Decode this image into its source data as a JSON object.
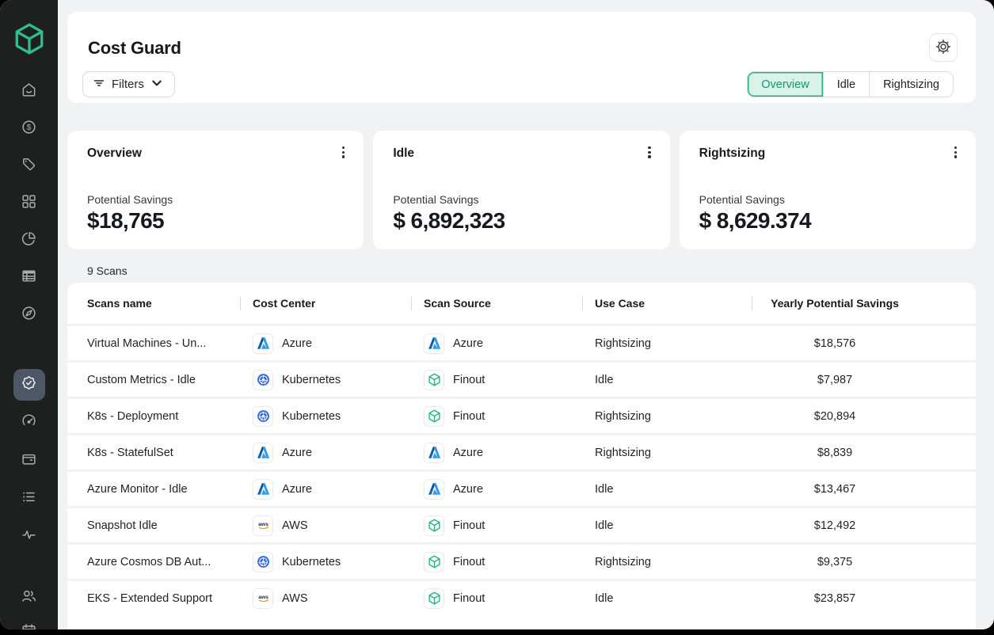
{
  "colors": {
    "sidebar_bg": "#1d201f",
    "sidebar_active_bg": "#4d5766",
    "main_bg": "#f1f2f4",
    "accent_green": "#2fbe8d",
    "tab_active_bg": "#d9f3e8",
    "tab_active_border": "#2fae82",
    "tab_active_text": "#0f9872"
  },
  "sidebar": {
    "logo_icon": "finout-logo",
    "sections": [
      {
        "name": "top",
        "items": [
          {
            "icon": "home-icon"
          },
          {
            "icon": "dollar-circle-icon"
          },
          {
            "icon": "tag-icon"
          },
          {
            "icon": "grid-icon"
          },
          {
            "icon": "pie-chart-icon"
          },
          {
            "icon": "table-icon"
          },
          {
            "icon": "compass-icon"
          }
        ]
      },
      {
        "name": "mid",
        "items": [
          {
            "icon": "badge-check-icon",
            "active": true
          },
          {
            "icon": "gauge-icon"
          },
          {
            "icon": "wallet-icon"
          },
          {
            "icon": "list-icon"
          },
          {
            "icon": "activity-icon"
          }
        ]
      },
      {
        "name": "bottom",
        "items": [
          {
            "icon": "users-icon"
          },
          {
            "icon": "calendar-icon"
          }
        ]
      }
    ]
  },
  "header": {
    "title": "Cost Guard",
    "filters_label": "Filters",
    "tabs": [
      {
        "label": "Overview",
        "active": true
      },
      {
        "label": "Idle",
        "active": false
      },
      {
        "label": "Rightsizing",
        "active": false
      }
    ]
  },
  "cards": [
    {
      "title": "Overview",
      "savings_label": "Potential Savings",
      "amount": "$18,765"
    },
    {
      "title": "Idle",
      "savings_label": "Potential Savings",
      "amount": "$ 6,892,323"
    },
    {
      "title": "Rightsizing",
      "savings_label": "Potential Savings",
      "amount": "$ 8,629.374"
    }
  ],
  "scans": {
    "count_label": "9 Scans",
    "columns": [
      "Scans name",
      "Cost Center",
      "Scan Source",
      "Use Case",
      "Yearly Potential Savings"
    ],
    "rows": [
      {
        "name": "Virtual Machines - Un...",
        "cost_center": {
          "icon": "azure-icon",
          "label": "Azure"
        },
        "scan_source": {
          "icon": "azure-icon",
          "label": "Azure"
        },
        "use_case": "Rightsizing",
        "savings": "$18,576"
      },
      {
        "name": "Custom Metrics - Idle",
        "cost_center": {
          "icon": "kubernetes-icon",
          "label": "Kubernetes"
        },
        "scan_source": {
          "icon": "finout-icon",
          "label": "Finout"
        },
        "use_case": "Idle",
        "savings": "$7,987"
      },
      {
        "name": "K8s - Deployment",
        "cost_center": {
          "icon": "kubernetes-icon",
          "label": "Kubernetes"
        },
        "scan_source": {
          "icon": "finout-icon",
          "label": "Finout"
        },
        "use_case": "Rightsizing",
        "savings": "$20,894"
      },
      {
        "name": "K8s - StatefulSet",
        "cost_center": {
          "icon": "azure-icon",
          "label": "Azure"
        },
        "scan_source": {
          "icon": "azure-icon",
          "label": "Azure"
        },
        "use_case": "Rightsizing",
        "savings": "$8,839"
      },
      {
        "name": "Azure Monitor - Idle",
        "cost_center": {
          "icon": "azure-icon",
          "label": "Azure"
        },
        "scan_source": {
          "icon": "azure-icon",
          "label": "Azure"
        },
        "use_case": "Idle",
        "savings": "$13,467"
      },
      {
        "name": "Snapshot Idle",
        "cost_center": {
          "icon": "aws-icon",
          "label": "AWS"
        },
        "scan_source": {
          "icon": "finout-icon",
          "label": "Finout"
        },
        "use_case": "Idle",
        "savings": "$12,492"
      },
      {
        "name": "Azure Cosmos DB Aut...",
        "cost_center": {
          "icon": "kubernetes-icon",
          "label": "Kubernetes"
        },
        "scan_source": {
          "icon": "finout-icon",
          "label": "Finout"
        },
        "use_case": "Rightsizing",
        "savings": "$9,375"
      },
      {
        "name": "EKS - Extended Support",
        "cost_center": {
          "icon": "aws-icon",
          "label": "AWS"
        },
        "scan_source": {
          "icon": "finout-icon",
          "label": "Finout"
        },
        "use_case": "Idle",
        "savings": "$23,857"
      }
    ]
  }
}
